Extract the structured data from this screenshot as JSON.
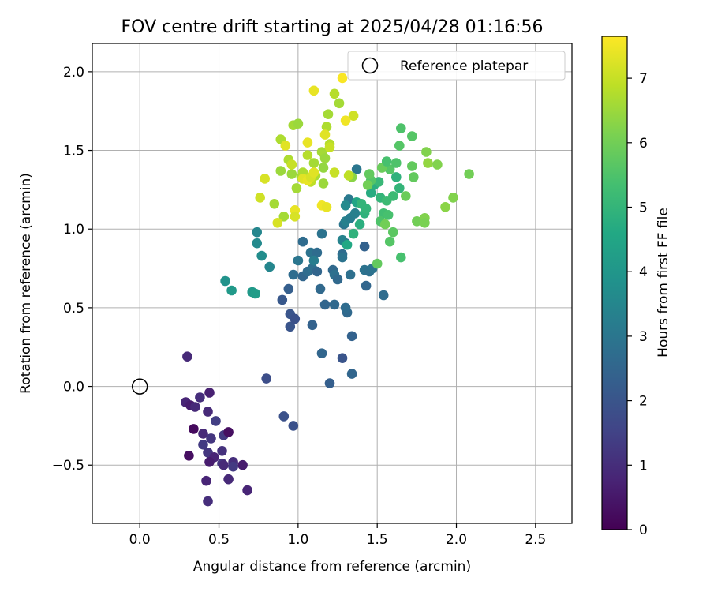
{
  "chart_data": {
    "type": "scatter",
    "title": "FOV centre drift starting at 2025/04/28 01:16:56",
    "xlabel": "Angular distance from reference (arcmin)",
    "ylabel": "Rotation from reference (arcmin)",
    "xlim": [
      -0.3,
      2.73
    ],
    "ylim": [
      -0.87,
      2.18
    ],
    "xticks": [
      0.0,
      0.5,
      1.0,
      1.5,
      2.0,
      2.5
    ],
    "xtick_labels": [
      "0.0",
      "0.5",
      "1.0",
      "1.5",
      "2.0",
      "2.5"
    ],
    "yticks": [
      -0.5,
      0.0,
      0.5,
      1.0,
      1.5,
      2.0
    ],
    "ytick_labels": [
      "−0.5",
      "0.0",
      "0.5",
      "1.0",
      "1.5",
      "2.0"
    ],
    "grid": true,
    "legend": {
      "position": "top-right",
      "entries": [
        "Reference platepar"
      ]
    },
    "reference_point": {
      "x": 0.0,
      "y": 0.0,
      "label": "Reference platepar"
    },
    "colorbar": {
      "label": "Hours from first FF file",
      "colormap": "viridis",
      "range": [
        0,
        7.65
      ],
      "ticks": [
        0,
        1,
        2,
        3,
        4,
        5,
        6,
        7
      ],
      "tick_labels": [
        "0",
        "1",
        "2",
        "3",
        "4",
        "5",
        "6",
        "7"
      ]
    },
    "points": [
      [
        0.3,
        0.19,
        0.9
      ],
      [
        0.29,
        -0.1,
        0.8
      ],
      [
        0.32,
        -0.12,
        0.6
      ],
      [
        0.35,
        -0.13,
        0.9
      ],
      [
        0.38,
        -0.07,
        1.0
      ],
      [
        0.44,
        -0.04,
        0.7
      ],
      [
        0.34,
        -0.27,
        0.2
      ],
      [
        0.31,
        -0.44,
        0.3
      ],
      [
        0.4,
        -0.3,
        0.9
      ],
      [
        0.43,
        -0.16,
        0.9
      ],
      [
        0.48,
        -0.22,
        1.4
      ],
      [
        0.4,
        -0.37,
        1.3
      ],
      [
        0.45,
        -0.33,
        1.2
      ],
      [
        0.53,
        -0.31,
        1.3
      ],
      [
        0.56,
        -0.29,
        0.3
      ],
      [
        0.43,
        -0.42,
        1.2
      ],
      [
        0.47,
        -0.45,
        0.8
      ],
      [
        0.52,
        -0.41,
        1.1
      ],
      [
        0.44,
        -0.48,
        0.6
      ],
      [
        0.52,
        -0.49,
        1.2
      ],
      [
        0.59,
        -0.48,
        1.0
      ],
      [
        0.65,
        -0.5,
        0.6
      ],
      [
        0.59,
        -0.51,
        1.3
      ],
      [
        0.53,
        -0.5,
        0.9
      ],
      [
        0.42,
        -0.6,
        0.8
      ],
      [
        0.56,
        -0.59,
        0.9
      ],
      [
        0.68,
        -0.66,
        0.8
      ],
      [
        0.43,
        -0.73,
        1.0
      ],
      [
        0.8,
        0.05,
        1.8
      ],
      [
        0.91,
        -0.19,
        1.9
      ],
      [
        0.97,
        -0.25,
        1.9
      ],
      [
        0.9,
        0.55,
        2.1
      ],
      [
        0.95,
        0.46,
        2.0
      ],
      [
        0.95,
        0.38,
        2.0
      ],
      [
        0.98,
        0.43,
        1.9
      ],
      [
        0.94,
        0.62,
        2.3
      ],
      [
        1.09,
        0.39,
        2.4
      ],
      [
        1.15,
        0.21,
        2.5
      ],
      [
        1.2,
        0.02,
        2.3
      ],
      [
        1.28,
        0.18,
        2.0
      ],
      [
        1.34,
        0.08,
        2.5
      ],
      [
        1.34,
        0.32,
        2.4
      ],
      [
        1.31,
        0.47,
        2.6
      ],
      [
        1.3,
        0.5,
        2.7
      ],
      [
        1.23,
        0.52,
        2.6
      ],
      [
        1.17,
        0.52,
        2.5
      ],
      [
        1.14,
        0.62,
        2.6
      ],
      [
        0.97,
        0.71,
        2.7
      ],
      [
        1.03,
        0.7,
        2.5
      ],
      [
        1.06,
        0.73,
        2.7
      ],
      [
        1.09,
        0.75,
        2.8
      ],
      [
        1.12,
        0.73,
        2.5
      ],
      [
        1.08,
        0.85,
        2.9
      ],
      [
        1.12,
        0.85,
        2.7
      ],
      [
        1.03,
        0.92,
        2.7
      ],
      [
        1.0,
        0.8,
        3.0
      ],
      [
        1.1,
        0.8,
        3.2
      ],
      [
        1.15,
        0.97,
        2.9
      ],
      [
        1.22,
        0.74,
        2.6
      ],
      [
        1.23,
        0.71,
        2.8
      ],
      [
        1.25,
        0.68,
        2.6
      ],
      [
        1.28,
        0.84,
        2.7
      ],
      [
        1.28,
        0.82,
        2.9
      ],
      [
        1.3,
        0.91,
        2.9
      ],
      [
        1.33,
        0.71,
        2.8
      ],
      [
        1.42,
        0.74,
        2.9
      ],
      [
        1.43,
        0.64,
        2.5
      ],
      [
        1.45,
        0.73,
        2.8
      ],
      [
        1.47,
        0.75,
        2.9
      ],
      [
        1.42,
        0.89,
        2.4
      ],
      [
        1.28,
        0.93,
        3.4
      ],
      [
        1.29,
        1.03,
        3.0
      ],
      [
        1.3,
        1.05,
        3.3
      ],
      [
        1.33,
        1.07,
        3.2
      ],
      [
        1.32,
        1.19,
        3.1
      ],
      [
        1.3,
        1.15,
        3.6
      ],
      [
        1.36,
        1.1,
        3.3
      ],
      [
        1.37,
        1.38,
        3.0
      ],
      [
        1.54,
        0.58,
        2.7
      ],
      [
        0.54,
        0.67,
        3.9
      ],
      [
        0.58,
        0.61,
        4.1
      ],
      [
        0.71,
        0.6,
        4.1
      ],
      [
        0.73,
        0.59,
        4.2
      ],
      [
        0.74,
        0.98,
        3.5
      ],
      [
        0.74,
        0.91,
        3.6
      ],
      [
        0.77,
        0.83,
        3.7
      ],
      [
        0.82,
        0.76,
        3.5
      ],
      [
        1.31,
        0.9,
        4.6
      ],
      [
        1.35,
        0.97,
        4.9
      ],
      [
        1.37,
        1.17,
        4.5
      ],
      [
        1.4,
        1.16,
        5.0
      ],
      [
        1.39,
        1.03,
        4.8
      ],
      [
        1.42,
        1.1,
        4.9
      ],
      [
        1.43,
        1.13,
        5.0
      ],
      [
        1.46,
        1.23,
        4.7
      ],
      [
        1.48,
        1.28,
        4.8
      ],
      [
        1.51,
        1.3,
        5.1
      ],
      [
        1.52,
        1.2,
        5.0
      ],
      [
        1.54,
        1.1,
        5.3
      ],
      [
        1.56,
        1.18,
        5.2
      ],
      [
        1.57,
        1.09,
        5.4
      ],
      [
        1.6,
        1.21,
        5.2
      ],
      [
        1.62,
        1.33,
        4.9
      ],
      [
        1.64,
        1.26,
        5.0
      ],
      [
        1.58,
        0.92,
        5.6
      ],
      [
        1.6,
        0.98,
        5.7
      ],
      [
        1.5,
        0.78,
        5.8
      ],
      [
        1.65,
        0.82,
        5.4
      ],
      [
        1.52,
        1.05,
        5.5
      ],
      [
        1.55,
        1.03,
        6.0
      ],
      [
        1.58,
        1.38,
        5.6
      ],
      [
        1.62,
        1.42,
        5.5
      ],
      [
        1.64,
        1.53,
        5.6
      ],
      [
        1.65,
        1.64,
        5.5
      ],
      [
        1.72,
        1.4,
        5.8
      ],
      [
        1.72,
        1.59,
        5.6
      ],
      [
        1.73,
        1.33,
        5.8
      ],
      [
        1.75,
        1.05,
        6.0
      ],
      [
        1.8,
        1.07,
        6.2
      ],
      [
        1.8,
        1.04,
        6.1
      ],
      [
        1.81,
        1.49,
        6.2
      ],
      [
        1.82,
        1.42,
        6.4
      ],
      [
        1.88,
        1.41,
        6.2
      ],
      [
        1.93,
        1.14,
        6.3
      ],
      [
        1.98,
        1.2,
        6.2
      ],
      [
        2.08,
        1.35,
        6.0
      ],
      [
        1.46,
        1.31,
        5.6
      ],
      [
        1.44,
        1.28,
        6.0
      ],
      [
        1.45,
        1.35,
        5.8
      ],
      [
        1.53,
        1.39,
        5.9
      ],
      [
        1.56,
        1.43,
        5.4
      ],
      [
        1.34,
        1.33,
        6.3
      ],
      [
        1.68,
        1.21,
        5.9
      ],
      [
        0.85,
        1.16,
        6.6
      ],
      [
        0.89,
        1.37,
        6.5
      ],
      [
        0.89,
        1.57,
        6.7
      ],
      [
        0.91,
        1.08,
        6.6
      ],
      [
        0.94,
        1.44,
        6.7
      ],
      [
        0.96,
        1.35,
        6.5
      ],
      [
        0.97,
        1.66,
        6.6
      ],
      [
        1.0,
        1.67,
        6.5
      ],
      [
        0.99,
        1.26,
        6.6
      ],
      [
        1.02,
        1.33,
        6.6
      ],
      [
        1.03,
        1.36,
        6.7
      ],
      [
        1.06,
        1.47,
        6.8
      ],
      [
        1.08,
        1.3,
        6.9
      ],
      [
        1.1,
        1.42,
        6.6
      ],
      [
        1.11,
        1.34,
        6.7
      ],
      [
        1.15,
        1.49,
        6.6
      ],
      [
        1.16,
        1.29,
        6.5
      ],
      [
        1.16,
        1.39,
        6.4
      ],
      [
        1.17,
        1.45,
        6.5
      ],
      [
        1.18,
        1.65,
        6.7
      ],
      [
        1.19,
        1.73,
        6.6
      ],
      [
        1.2,
        1.54,
        6.8
      ],
      [
        1.2,
        1.52,
        7.0
      ],
      [
        1.23,
        1.36,
        7.0
      ],
      [
        1.23,
        1.86,
        6.8
      ],
      [
        1.32,
        1.34,
        6.9
      ],
      [
        1.35,
        1.72,
        7.1
      ],
      [
        1.26,
        1.8,
        6.6
      ],
      [
        0.76,
        1.2,
        7.1
      ],
      [
        0.79,
        1.32,
        7.2
      ],
      [
        0.87,
        1.04,
        7.2
      ],
      [
        0.92,
        1.53,
        7.3
      ],
      [
        0.98,
        1.12,
        7.4
      ],
      [
        0.98,
        1.08,
        7.2
      ],
      [
        1.03,
        1.32,
        7.3
      ],
      [
        1.06,
        1.31,
        7.4
      ],
      [
        1.08,
        1.33,
        7.2
      ],
      [
        1.06,
        1.55,
        7.4
      ],
      [
        1.1,
        1.36,
        7.3
      ],
      [
        1.1,
        1.88,
        7.4
      ],
      [
        1.15,
        1.15,
        7.5
      ],
      [
        1.17,
        1.6,
        7.3
      ],
      [
        1.18,
        1.14,
        7.4
      ],
      [
        1.28,
        1.96,
        7.6
      ],
      [
        1.3,
        1.69,
        7.5
      ],
      [
        0.96,
        1.41,
        7.0
      ]
    ]
  }
}
